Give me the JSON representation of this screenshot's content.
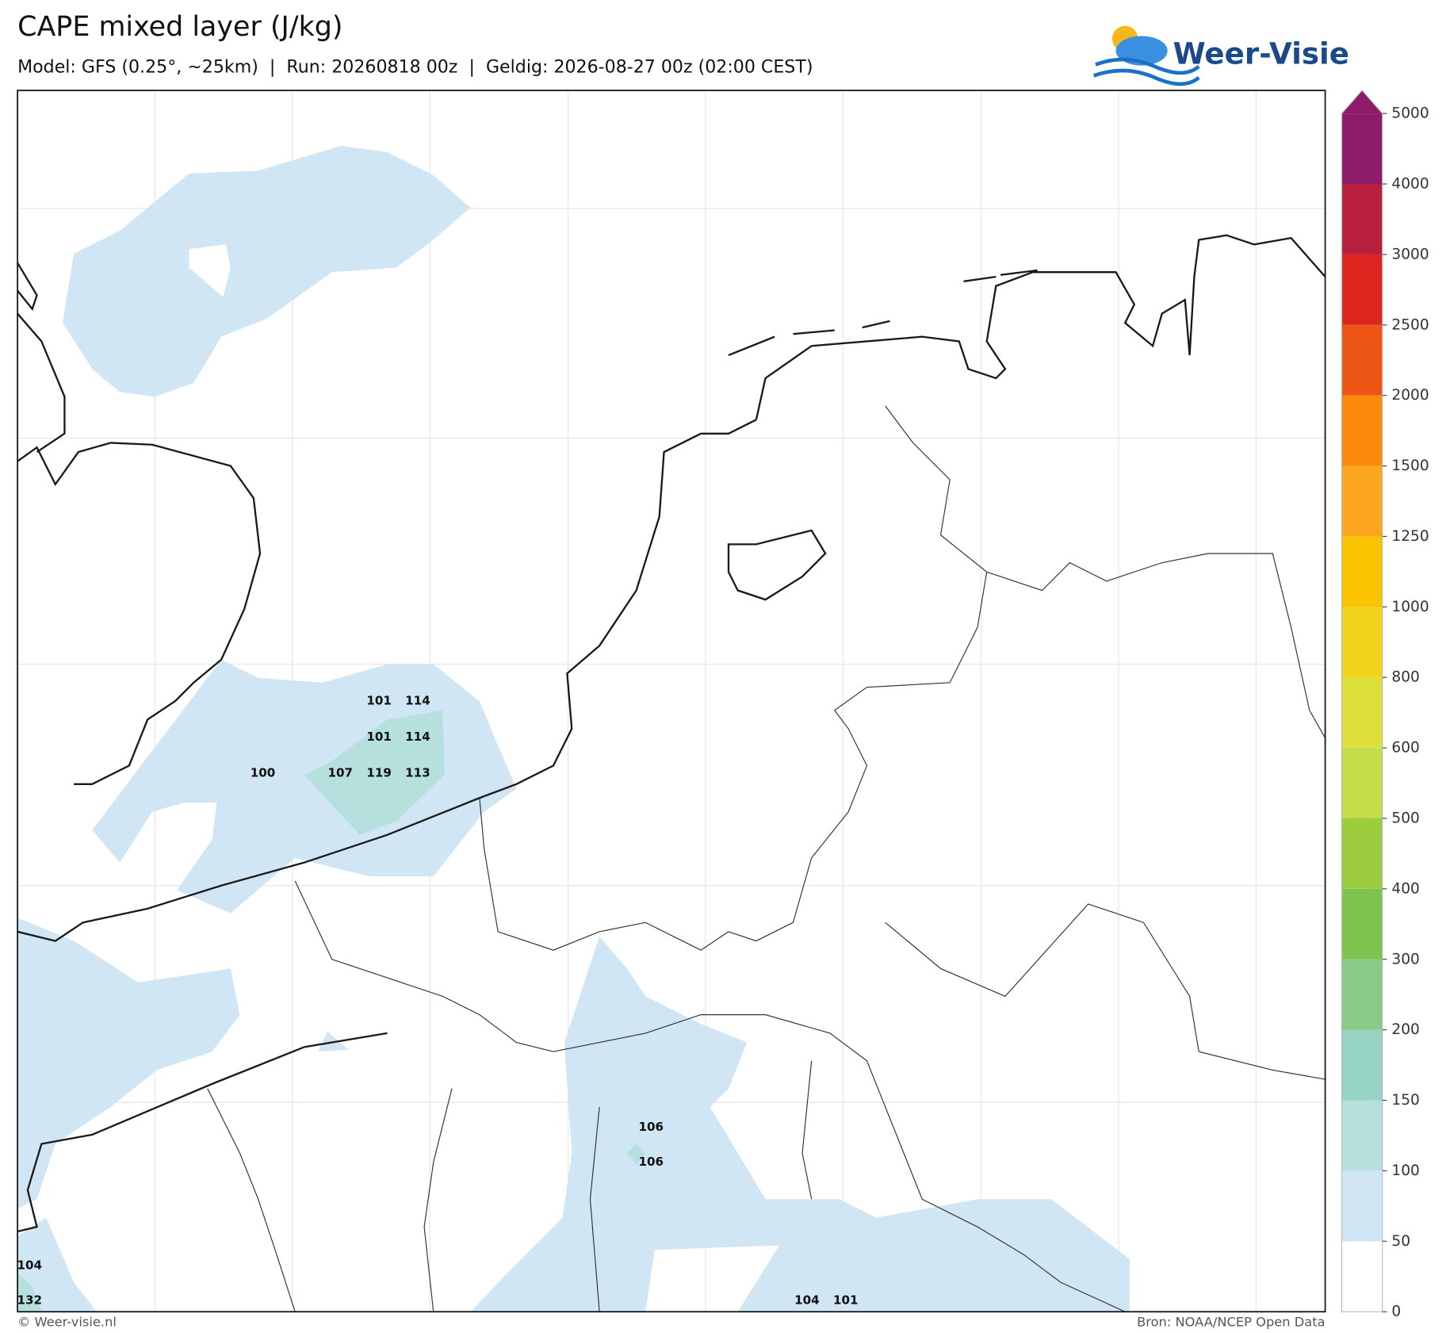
{
  "header": {
    "title": "CAPE mixed layer (J/kg)",
    "subtitle": "Model: GFS (0.25°, ~25km)  |  Run: 20260818 00z  |  Geldig: 2026-08-27 00z (02:00 CEST)",
    "logo": "Weer-Visie"
  },
  "colorbar": {
    "levels": [
      0,
      50,
      100,
      150,
      200,
      300,
      400,
      500,
      600,
      800,
      1000,
      1250,
      1500,
      2000,
      2500,
      3000,
      4000,
      5000
    ],
    "colors": [
      "#ffffff",
      "#d0e6f5",
      "#b5e0de",
      "#96d3c5",
      "#88cb87",
      "#7cc44e",
      "#9ccd3e",
      "#c3dc4a",
      "#dde03a",
      "#f1d419",
      "#fbc400",
      "#fca51f",
      "#fb8a0c",
      "#ed5514",
      "#dd2620",
      "#b71f3c",
      "#8d1b6a"
    ]
  },
  "map_labels": [
    101,
    114,
    101,
    114,
    100,
    107,
    119,
    113,
    106,
    106,
    104,
    132,
    104,
    101
  ],
  "footer": {
    "credit": "© Weer-visie.nl",
    "source": "Bron: NOAA/NCEP Open Data"
  }
}
